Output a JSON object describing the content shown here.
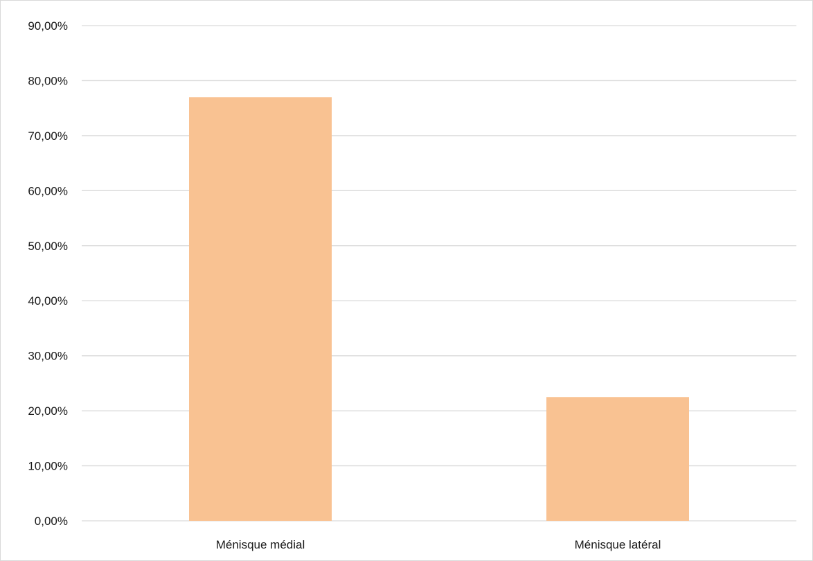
{
  "chart_data": {
    "type": "bar",
    "title": "",
    "xlabel": "",
    "ylabel": "",
    "categories": [
      "Ménisque médial",
      "Ménisque latéral"
    ],
    "values": [
      0.77,
      0.225
    ],
    "ylim": [
      0,
      0.9
    ],
    "yticks": [
      0,
      0.1,
      0.2,
      0.3,
      0.4,
      0.5,
      0.6,
      0.7,
      0.8,
      0.9
    ],
    "ytick_labels": [
      "0,00%",
      "10,00%",
      "20,00%",
      "30,00%",
      "40,00%",
      "50,00%",
      "60,00%",
      "70,00%",
      "80,00%",
      "90,00%"
    ],
    "grid": true,
    "legend": "none",
    "bar_color": "#f9c292",
    "grid_color": "#d9d9d9"
  }
}
